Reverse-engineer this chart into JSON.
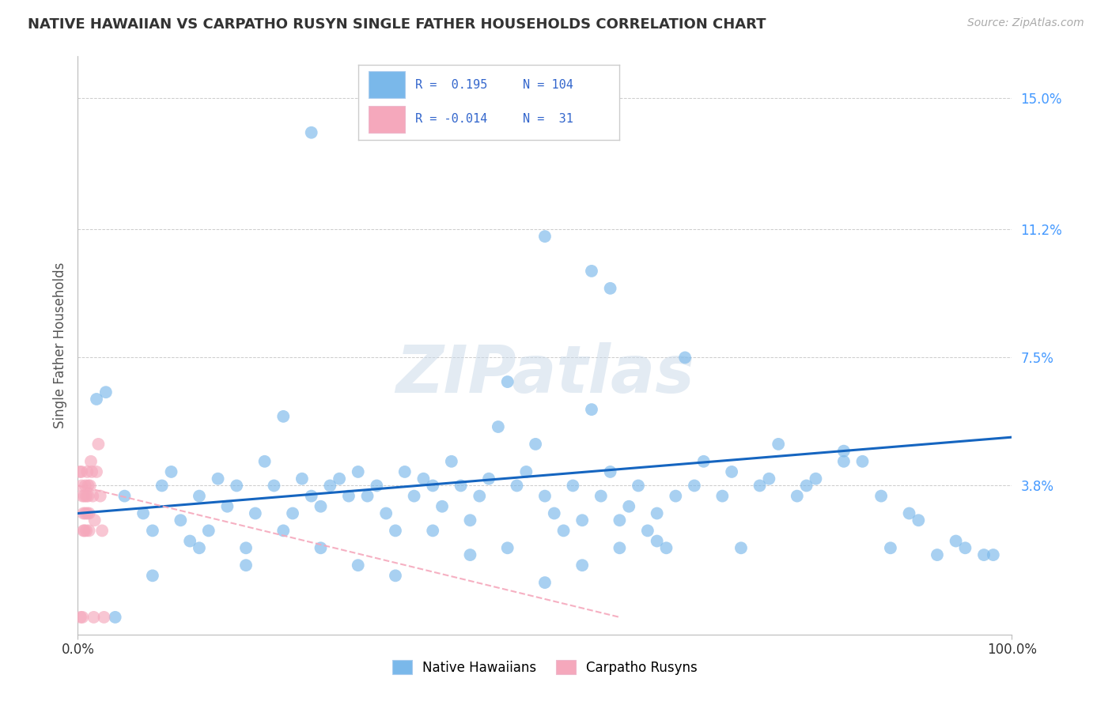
{
  "title": "NATIVE HAWAIIAN VS CARPATHO RUSYN SINGLE FATHER HOUSEHOLDS CORRELATION CHART",
  "source": "Source: ZipAtlas.com",
  "ylabel": "Single Father Households",
  "ytick_values": [
    0.0,
    0.038,
    0.075,
    0.112,
    0.15
  ],
  "ytick_labels": [
    "",
    "3.8%",
    "7.5%",
    "11.2%",
    "15.0%"
  ],
  "xlim": [
    0.0,
    1.0
  ],
  "ylim": [
    -0.005,
    0.162
  ],
  "r_blue": 0.195,
  "n_blue": 104,
  "r_pink": -0.014,
  "n_pink": 31,
  "blue_scatter_color": "#7ab8ea",
  "pink_scatter_color": "#f5a8bc",
  "trend_blue_color": "#1565c0",
  "trend_pink_color": "#f5a8bc",
  "legend_label_blue": "Native Hawaiians",
  "legend_label_pink": "Carpatho Rusyns",
  "watermark": "ZIPatlas",
  "grid_color": "#cccccc",
  "title_color": "#333333",
  "source_color": "#aaaaaa",
  "axis_label_color": "#555555",
  "ytick_color": "#4499ff",
  "background_color": "#ffffff",
  "blue_trend_y0": 0.03,
  "blue_trend_y1": 0.052,
  "pink_trend_y0": 0.038,
  "pink_trend_x1": 0.58,
  "pink_trend_y1": 0.0,
  "native_hawaiian_x": [
    0.02,
    0.03,
    0.05,
    0.07,
    0.08,
    0.09,
    0.1,
    0.11,
    0.12,
    0.13,
    0.14,
    0.15,
    0.16,
    0.17,
    0.18,
    0.19,
    0.2,
    0.21,
    0.22,
    0.23,
    0.24,
    0.25,
    0.26,
    0.27,
    0.28,
    0.29,
    0.3,
    0.31,
    0.32,
    0.33,
    0.34,
    0.35,
    0.36,
    0.37,
    0.38,
    0.39,
    0.4,
    0.41,
    0.42,
    0.43,
    0.44,
    0.45,
    0.46,
    0.47,
    0.48,
    0.49,
    0.5,
    0.51,
    0.52,
    0.53,
    0.54,
    0.55,
    0.56,
    0.57,
    0.58,
    0.59,
    0.6,
    0.61,
    0.62,
    0.63,
    0.64,
    0.65,
    0.67,
    0.69,
    0.71,
    0.73,
    0.75,
    0.77,
    0.79,
    0.82,
    0.84,
    0.87,
    0.89,
    0.92,
    0.95,
    0.97,
    0.04,
    0.08,
    0.13,
    0.18,
    0.22,
    0.26,
    0.3,
    0.34,
    0.38,
    0.42,
    0.46,
    0.5,
    0.54,
    0.58,
    0.62,
    0.66,
    0.7,
    0.74,
    0.78,
    0.82,
    0.86,
    0.9,
    0.94,
    0.98,
    0.25,
    0.5,
    0.55,
    0.57
  ],
  "native_hawaiian_y": [
    0.063,
    0.065,
    0.035,
    0.03,
    0.025,
    0.038,
    0.042,
    0.028,
    0.022,
    0.035,
    0.025,
    0.04,
    0.032,
    0.038,
    0.02,
    0.03,
    0.045,
    0.038,
    0.058,
    0.03,
    0.04,
    0.035,
    0.032,
    0.038,
    0.04,
    0.035,
    0.042,
    0.035,
    0.038,
    0.03,
    0.025,
    0.042,
    0.035,
    0.04,
    0.038,
    0.032,
    0.045,
    0.038,
    0.028,
    0.035,
    0.04,
    0.055,
    0.068,
    0.038,
    0.042,
    0.05,
    0.035,
    0.03,
    0.025,
    0.038,
    0.028,
    0.06,
    0.035,
    0.042,
    0.028,
    0.032,
    0.038,
    0.025,
    0.03,
    0.02,
    0.035,
    0.075,
    0.045,
    0.035,
    0.02,
    0.038,
    0.05,
    0.035,
    0.04,
    0.048,
    0.045,
    0.02,
    0.03,
    0.018,
    0.02,
    0.018,
    0.0,
    0.012,
    0.02,
    0.015,
    0.025,
    0.02,
    0.015,
    0.012,
    0.025,
    0.018,
    0.02,
    0.01,
    0.015,
    0.02,
    0.022,
    0.038,
    0.042,
    0.04,
    0.038,
    0.045,
    0.035,
    0.028,
    0.022,
    0.018,
    0.14,
    0.11,
    0.1,
    0.095
  ],
  "carpatho_x": [
    0.002,
    0.003,
    0.004,
    0.004,
    0.005,
    0.005,
    0.006,
    0.006,
    0.007,
    0.007,
    0.008,
    0.008,
    0.009,
    0.009,
    0.01,
    0.01,
    0.011,
    0.011,
    0.012,
    0.012,
    0.013,
    0.014,
    0.015,
    0.016,
    0.017,
    0.018,
    0.02,
    0.022,
    0.024,
    0.026,
    0.028
  ],
  "carpatho_y": [
    0.042,
    0.0,
    0.038,
    0.042,
    0.0,
    0.035,
    0.025,
    0.03,
    0.035,
    0.025,
    0.03,
    0.038,
    0.035,
    0.025,
    0.042,
    0.03,
    0.038,
    0.035,
    0.03,
    0.025,
    0.038,
    0.045,
    0.042,
    0.035,
    0.0,
    0.028,
    0.042,
    0.05,
    0.035,
    0.025,
    0.0
  ]
}
